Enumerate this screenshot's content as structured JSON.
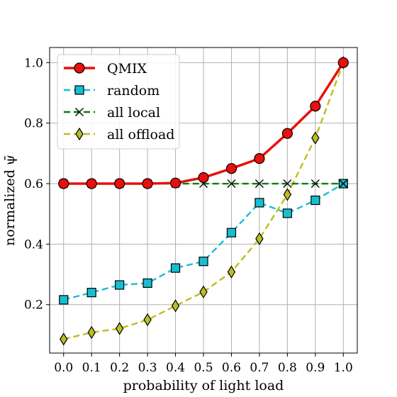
{
  "chart_data": {
    "type": "line",
    "xlabel": "probability of light load",
    "ylabel": "normalized ψ̄",
    "xlim": [
      -0.05,
      1.05
    ],
    "ylim": [
      0.04,
      1.05
    ],
    "xticks": [
      0.0,
      0.1,
      0.2,
      0.3,
      0.4,
      0.5,
      0.6,
      0.7,
      0.8,
      0.9,
      1.0
    ],
    "xtick_labels": [
      "0.0",
      "0.1",
      "0.2",
      "0.3",
      "0.4",
      "0.5",
      "0.6",
      "0.7",
      "0.8",
      "0.9",
      "1.0"
    ],
    "yticks": [
      0.2,
      0.4,
      0.6,
      0.8,
      1.0
    ],
    "ytick_labels": [
      "0.2",
      "0.4",
      "0.6",
      "0.8",
      "1.0"
    ],
    "grid": true,
    "legend_position": "top-left",
    "x": [
      0.0,
      0.1,
      0.2,
      0.3,
      0.4,
      0.5,
      0.6,
      0.7,
      0.8,
      0.9,
      1.0
    ],
    "series": [
      {
        "name": "QMIX",
        "values": [
          0.6,
          0.6,
          0.6,
          0.6,
          0.602,
          0.62,
          0.65,
          0.683,
          0.766,
          0.856,
          1.0
        ],
        "color": "#e8100c",
        "marker": "circle",
        "line_style": "solid"
      },
      {
        "name": "random",
        "values": [
          0.216,
          0.24,
          0.265,
          0.271,
          0.321,
          0.343,
          0.438,
          0.537,
          0.502,
          0.545,
          0.6
        ],
        "color": "#17becf",
        "marker": "square",
        "line_style": "dashed"
      },
      {
        "name": "all local",
        "values": [
          0.6,
          0.6,
          0.6,
          0.6,
          0.6,
          0.6,
          0.6,
          0.6,
          0.6,
          0.6,
          0.6
        ],
        "color": "#008000",
        "marker": "x",
        "line_style": "dashed"
      },
      {
        "name": "all offload",
        "values": [
          0.086,
          0.108,
          0.121,
          0.15,
          0.196,
          0.242,
          0.308,
          0.418,
          0.564,
          0.751,
          1.0
        ],
        "color": "#bcbd22",
        "marker": "diamond",
        "line_style": "dashed"
      }
    ]
  }
}
